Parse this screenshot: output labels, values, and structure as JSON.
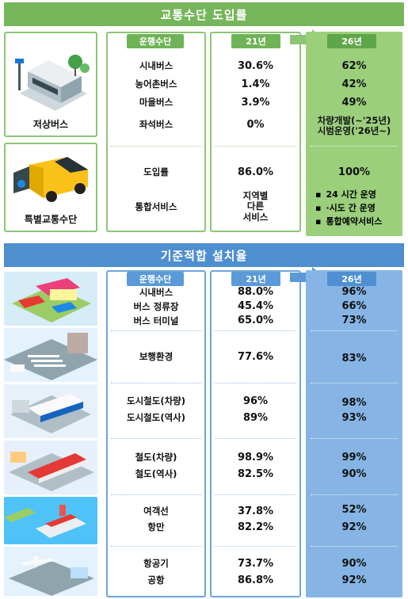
{
  "intro": {
    "title": "교통수단 도입률",
    "headers": {
      "mode": "운행수단",
      "y21": "21년",
      "y26": "26년"
    },
    "groups": [
      {
        "label": "저상버스",
        "rows": [
          {
            "mode": "시내버스",
            "y21": "30.6%",
            "y26": "62%"
          },
          {
            "mode": "농어촌버스",
            "y21": "1.4%",
            "y26": "42%"
          },
          {
            "mode": "마을버스",
            "y21": "3.9%",
            "y26": "49%"
          },
          {
            "mode": "좌석버스",
            "y21": "0%",
            "y26_line1": "차량개발(~'25년)",
            "y26_line2": "시범운영('26년~)"
          }
        ]
      },
      {
        "label": "특별교통수단",
        "rows": [
          {
            "mode": "도입률",
            "y21": "86.0%",
            "y26": "100%"
          },
          {
            "mode": "통합서비스",
            "y21_line1": "지역별",
            "y21_line2": "다른",
            "y21_line3": "서비스",
            "y26_bullets": [
              "24 시간 운영",
              "·시도 간 운영",
              "통합예약서비스"
            ]
          }
        ]
      }
    ]
  },
  "install": {
    "title": "기준적합 설치율",
    "headers": {
      "mode": "운행수단",
      "y21": "21년",
      "y26": "26년"
    },
    "groups": [
      {
        "rows": [
          {
            "mode": "시내버스",
            "y21": "88.0%",
            "y26": "96%"
          },
          {
            "mode": "버스 정류장",
            "y21": "45.4%",
            "y26": "66%"
          },
          {
            "mode": "버스 터미널",
            "y21": "65.0%",
            "y26": "73%"
          }
        ]
      },
      {
        "rows": [
          {
            "mode": "보행환경",
            "y21": "77.6%",
            "y26": "83%"
          }
        ]
      },
      {
        "rows": [
          {
            "mode": "도시철도(차량)",
            "y21": "96%",
            "y26": "98%"
          },
          {
            "mode": "도시철도(역사)",
            "y21": "89%",
            "y26": "93%"
          }
        ]
      },
      {
        "rows": [
          {
            "mode": "철도(차량)",
            "y21": "98.9%",
            "y26": "99%"
          },
          {
            "mode": "철도(역사)",
            "y21": "82.5%",
            "y26": "90%"
          }
        ]
      },
      {
        "rows": [
          {
            "mode": "여객선",
            "y21": "37.8%",
            "y26": "52%"
          },
          {
            "mode": "항만",
            "y21": "82.2%",
            "y26": "92%"
          }
        ]
      },
      {
        "rows": [
          {
            "mode": "항공기",
            "y21": "73.7%",
            "y26": "90%"
          },
          {
            "mode": "공항",
            "y21": "86.8%",
            "y26": "92%"
          }
        ]
      }
    ]
  },
  "colors": {
    "green": "#76b65b",
    "blue": "#4e8fd0"
  },
  "icons": [
    "low-floor-bus-illustration",
    "special-transport-van-illustration",
    "bus-terminal-illustration",
    "pedestrian-crosswalk-illustration",
    "subway-station-illustration",
    "railway-train-illustration",
    "passenger-ship-illustration",
    "airport-illustration"
  ]
}
